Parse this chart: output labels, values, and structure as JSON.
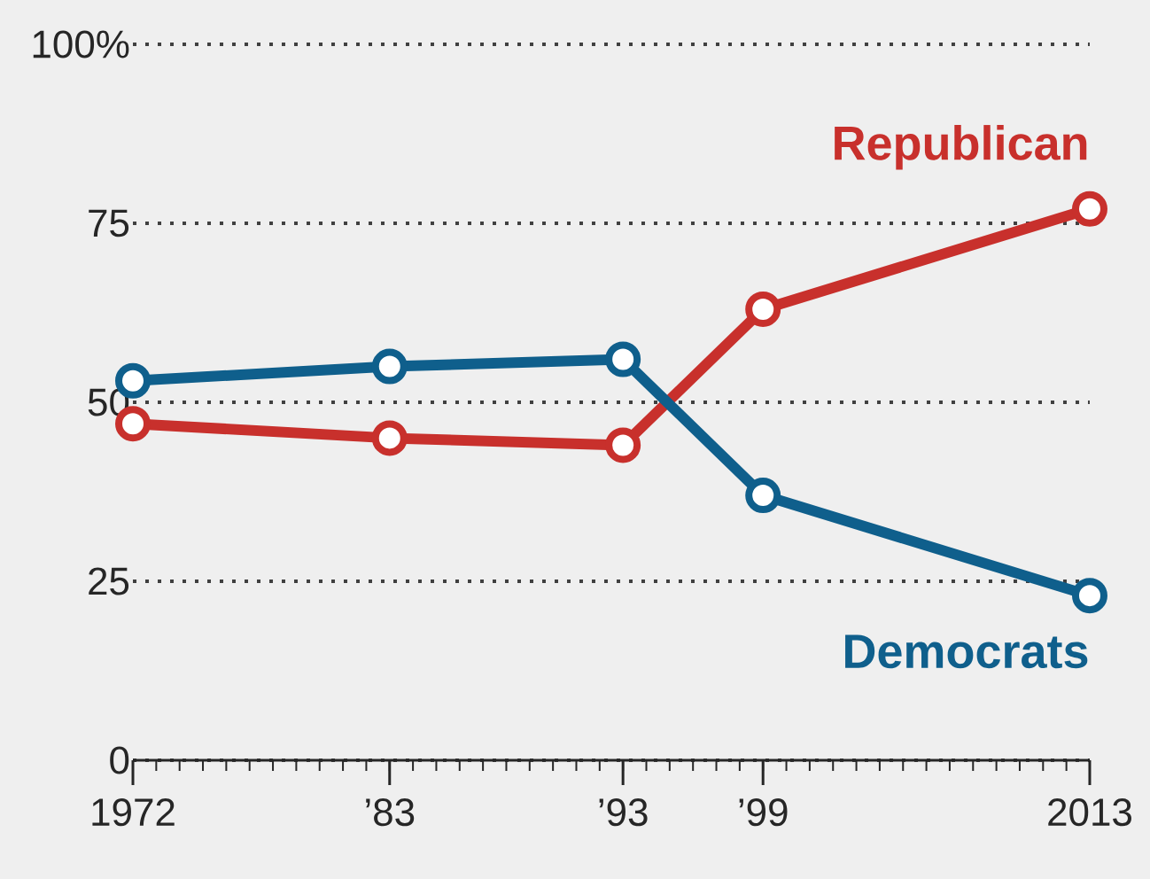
{
  "chart_data": {
    "type": "line",
    "x": [
      1972,
      1983,
      1993,
      1999,
      2013
    ],
    "series": [
      {
        "name": "Republican",
        "color": "#c8302c",
        "values": [
          47,
          45,
          44,
          63,
          77
        ]
      },
      {
        "name": "Democrats",
        "color": "#0f5f8c",
        "values": [
          53,
          55,
          56,
          37,
          23
        ]
      }
    ],
    "xlim": [
      1972,
      2013
    ],
    "xticks": [
      {
        "value": 1972,
        "label": "1972"
      },
      {
        "value": 1983,
        "label": "’83"
      },
      {
        "value": 1993,
        "label": "’93"
      },
      {
        "value": 1999,
        "label": "’99"
      },
      {
        "value": 2013,
        "label": "2013"
      }
    ],
    "ylim": [
      0,
      100
    ],
    "yticks": [
      0,
      25,
      50,
      75,
      {
        "value": 100,
        "label": "100%"
      }
    ],
    "grid": "y",
    "marker": "circle",
    "line_style": "solid"
  }
}
